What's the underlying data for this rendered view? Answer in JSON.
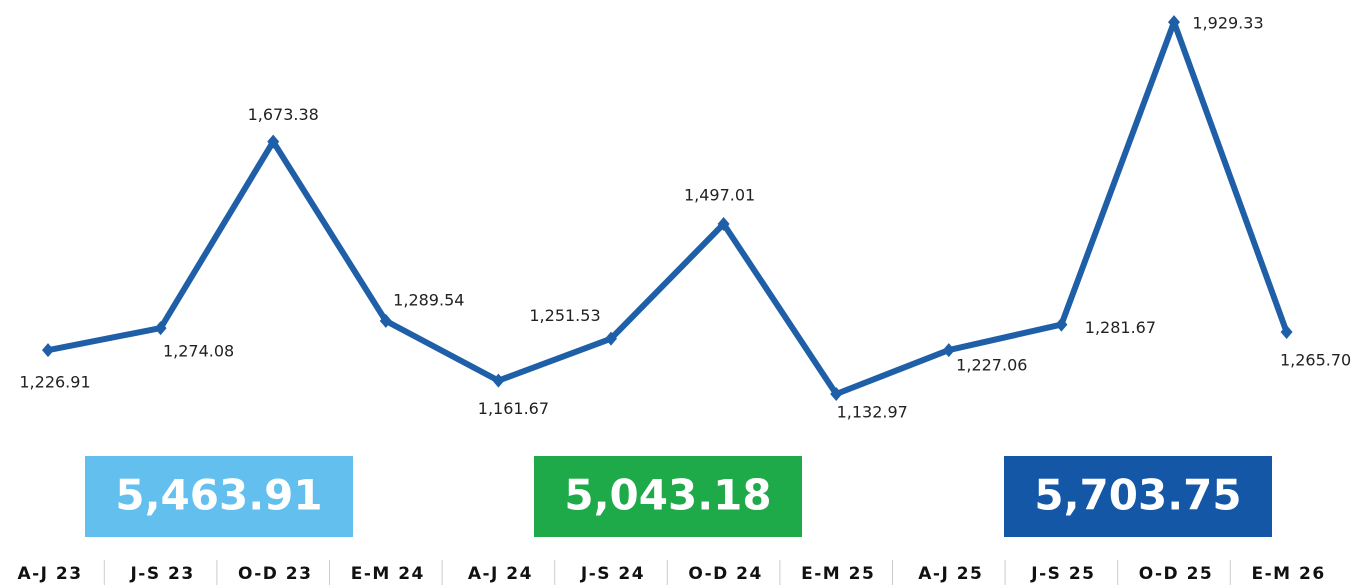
{
  "chart_data": {
    "type": "line",
    "categories": [
      "A-J 23",
      "J-S 23",
      "O-D 23",
      "E-M 24",
      "A-J 24",
      "J-S 24",
      "O-D 24",
      "E-M 25",
      "A-J 25",
      "J-S 25",
      "O-D 25",
      "E-M 26"
    ],
    "series": [
      {
        "color": "#1f5fa8",
        "values": [
          1226.91,
          1274.08,
          1673.38,
          1289.54,
          1161.67,
          1251.53,
          1497.01,
          1132.97,
          1227.06,
          1281.67,
          1929.33,
          1265.7
        ],
        "value_labels": [
          "1,226.91",
          "1,274.08",
          "1,673.38",
          "1,289.54",
          "1,161.67",
          "1,251.53",
          "1,497.01",
          "1,132.97",
          "1,227.06",
          "1,281.67",
          "1,929.33",
          "1,265.70"
        ]
      }
    ],
    "ylim": [
      1100,
      1950
    ],
    "annotations": [
      {
        "label": "5,463.91",
        "color": "#63c0ee"
      },
      {
        "label": "5,043.18",
        "color": "#1faa4a"
      },
      {
        "label": "5,703.75",
        "color": "#1357a6"
      }
    ]
  }
}
